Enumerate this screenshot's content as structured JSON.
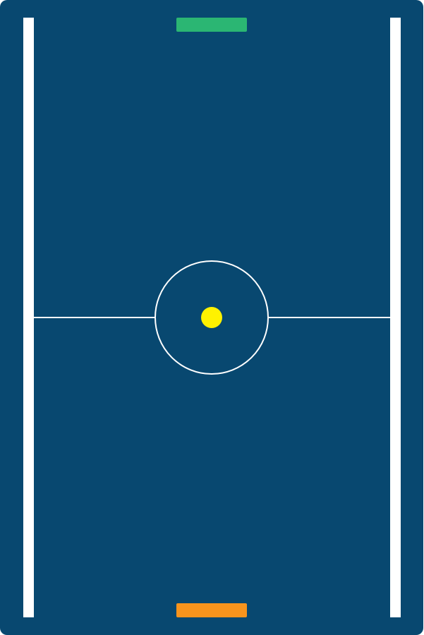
{
  "game": {
    "name": "air-hockey-pong",
    "colors": {
      "field": "#084870",
      "walls": "#ffffff",
      "lines": "#ffffff",
      "top_paddle": "#2bb673",
      "bottom_paddle": "#f7941d",
      "ball": "#fff200"
    },
    "elements": {
      "top_paddle": {
        "player": "top",
        "color_name": "green"
      },
      "bottom_paddle": {
        "player": "bottom",
        "color_name": "orange"
      },
      "ball": {
        "shape": "circle",
        "color_name": "yellow"
      }
    }
  }
}
